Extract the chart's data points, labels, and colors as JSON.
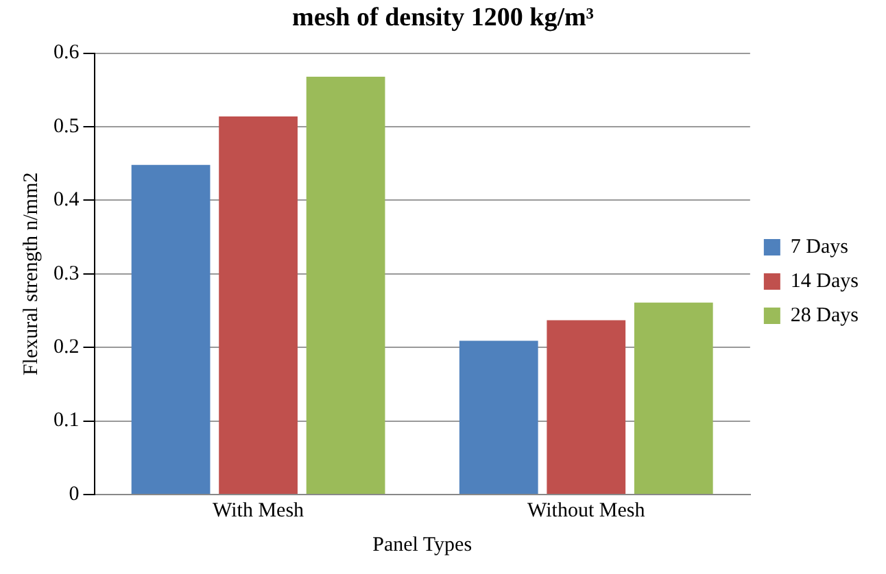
{
  "chart_data": {
    "type": "bar",
    "title": "mesh of density 1200 kg/m³",
    "xlabel": "Panel Types",
    "ylabel": "Flexural strength n/mm2",
    "categories": [
      "With Mesh",
      "Without Mesh"
    ],
    "series": [
      {
        "name": "7 Days",
        "color": "#4f81bd",
        "values": [
          0.448,
          0.209
        ]
      },
      {
        "name": "14 Days",
        "color": "#c0504d",
        "values": [
          0.514,
          0.237
        ]
      },
      {
        "name": "28 Days",
        "color": "#9bbb59",
        "values": [
          0.568,
          0.261
        ]
      }
    ],
    "ylim": [
      0,
      0.6
    ],
    "yticks": [
      0,
      0.1,
      0.2,
      0.3,
      0.4,
      0.5,
      0.6
    ],
    "grid": "y",
    "legend": "right"
  }
}
